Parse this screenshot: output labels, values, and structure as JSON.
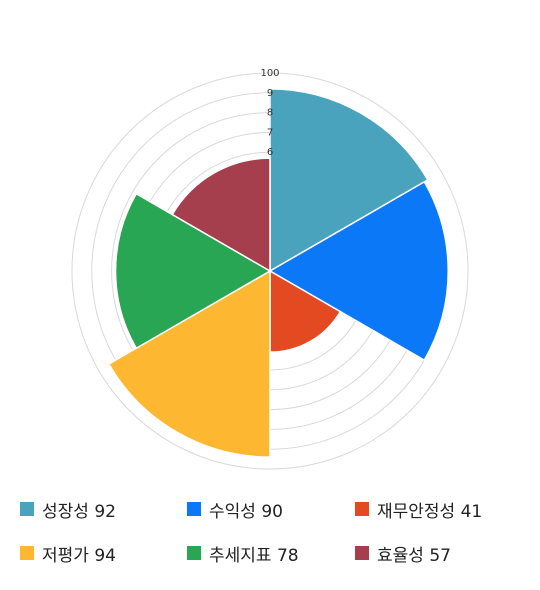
{
  "chart_data": {
    "type": "polar-area",
    "title": "",
    "radial_range": [
      0,
      100
    ],
    "radial_ticks": [
      "6",
      "7",
      "8",
      "9",
      "100"
    ],
    "grid": true,
    "legend_position": "bottom",
    "categories": [
      "성장성",
      "수익성",
      "재무안정성",
      "저평가",
      "추세지표",
      "효율성"
    ],
    "values": [
      92,
      90,
      41,
      94,
      78,
      57
    ],
    "colors": [
      "#4AA3BD",
      "#0A78F7",
      "#E34A22",
      "#FEB731",
      "#29A653",
      "#A63F4D"
    ],
    "legend": [
      {
        "label": "성장성",
        "value": "92"
      },
      {
        "label": "수익성",
        "value": "90"
      },
      {
        "label": "재무안정성",
        "value": "41"
      },
      {
        "label": "저평가",
        "value": "94"
      },
      {
        "label": "추세지표",
        "value": "78"
      },
      {
        "label": "효율성",
        "value": "57"
      }
    ]
  }
}
